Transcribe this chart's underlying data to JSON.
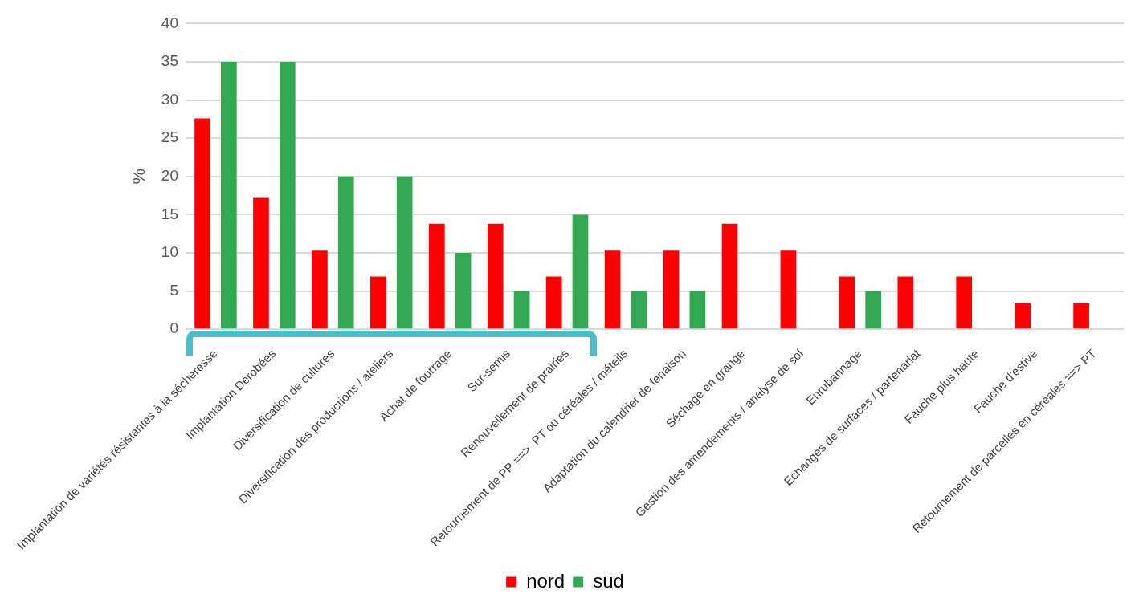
{
  "chart_data": {
    "type": "bar",
    "ylabel": "%",
    "categories": [
      "Implantation de variétés résistantes à la sécheresse",
      "Implantation Dérobées",
      "Diversification de cultures",
      "Diversification des productions / ateliers",
      "Achat de fourrage",
      "Sur-semis",
      "Renouvellement de prairies",
      "Retournement de PP ==>  PT ou céréales / méteils",
      "Adaptation du calendrier de fenaison",
      "Séchage en grange",
      "Gestion des amendements / analyse de sol",
      "Enrubannage",
      "Echanges de surfaces / partenariat",
      "Fauche plus haute",
      "Fauche d'estive",
      "Retournement de parcelles en céréales ==> PT"
    ],
    "series": [
      {
        "name": "nord",
        "color": "#ff0000",
        "values": [
          27.6,
          17.2,
          10.3,
          6.9,
          13.8,
          13.8,
          6.9,
          10.3,
          10.3,
          13.8,
          10.3,
          6.9,
          6.9,
          6.9,
          3.4,
          3.4
        ]
      },
      {
        "name": "sud",
        "color": "#33a852",
        "values": [
          35,
          35,
          20,
          20,
          10,
          5,
          15,
          5,
          5,
          null,
          null,
          5,
          null,
          null,
          null,
          null
        ]
      }
    ],
    "ylim": [
      0,
      40
    ],
    "yticks": [
      0,
      5,
      10,
      15,
      20,
      25,
      30,
      35,
      40
    ],
    "grid": "y",
    "legend": "bottom"
  }
}
